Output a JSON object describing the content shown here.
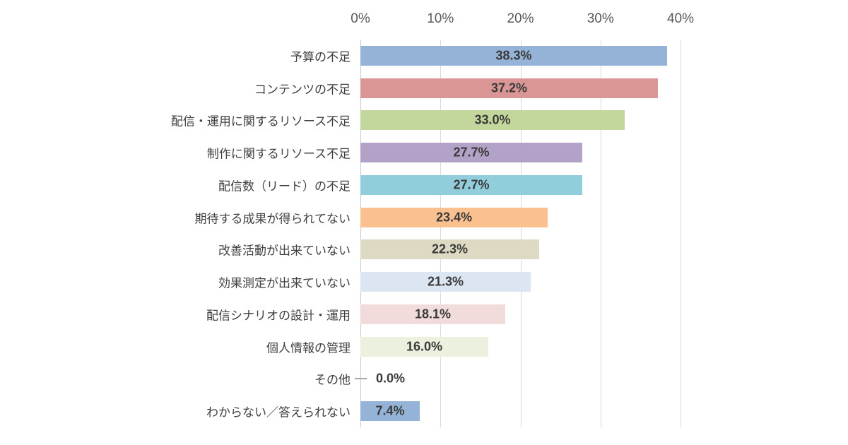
{
  "chart_data": {
    "type": "bar",
    "orientation": "horizontal",
    "title": "",
    "categories": [
      "予算の不足",
      "コンテンツの不足",
      "配信・運用に関するリソース不足",
      "制作に関するリソース不足",
      "配信数（リード）の不足",
      "期待する成果が得られてない",
      "改善活動が出来ていない",
      "効果測定が出来ていない",
      "配信シナリオの設計・運用",
      "個人情報の管理",
      "その他",
      "わからない／答えられない"
    ],
    "values": [
      38.3,
      37.2,
      33.0,
      27.7,
      27.7,
      23.4,
      22.3,
      21.3,
      18.1,
      16.0,
      0.0,
      7.4
    ],
    "value_labels": [
      "38.3%",
      "37.2%",
      "33.0%",
      "27.7%",
      "27.7%",
      "23.4%",
      "22.3%",
      "21.3%",
      "18.1%",
      "16.0%",
      "0.0%",
      "7.4%"
    ],
    "bar_colors": [
      "#95B3D7",
      "#D99694",
      "#C3D69B",
      "#B3A2C7",
      "#92CDDC",
      "#FAC090",
      "#DDD9C3",
      "#DCE6F2",
      "#F2DCDB",
      "#EBF1DE",
      null,
      "#95B3D7"
    ],
    "x_axis": {
      "position": "top",
      "ticks": [
        "0%",
        "10%",
        "20%",
        "30%",
        "40%"
      ],
      "min": 0,
      "max": 40
    },
    "grid": "vertical-only",
    "legend": "none",
    "colors": {
      "background": "#ffffff",
      "gridline": "#d9d9d9",
      "axis_line": "#c6cbd1",
      "tick_text": "#595959",
      "category_text": "#404040",
      "value_text": "#3a3a3a",
      "zero_dash": "#a6a6a6"
    }
  }
}
